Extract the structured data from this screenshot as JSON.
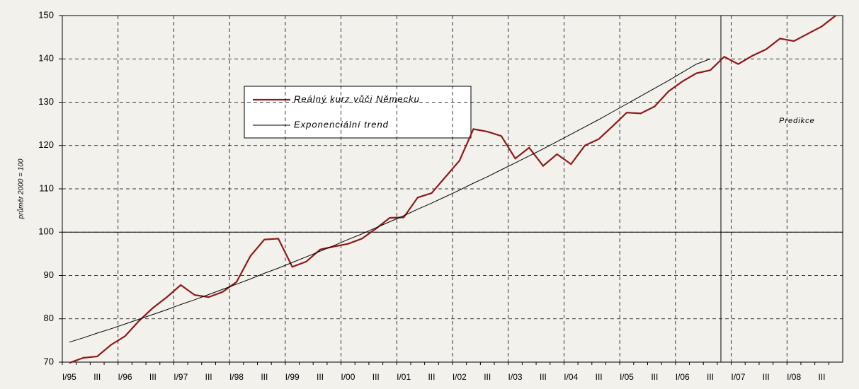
{
  "chart_data": {
    "type": "line",
    "y_axis_label": "průměr 2000 = 100",
    "annotation": "Predikce",
    "categories": [
      "I/95",
      null,
      "III",
      null,
      "I/96",
      null,
      "III",
      null,
      "I/97",
      null,
      "III",
      null,
      "I/98",
      null,
      "III",
      null,
      "I/99",
      null,
      "III",
      null,
      "I/00",
      null,
      "III",
      null,
      "I/01",
      null,
      "III",
      null,
      "I/02",
      null,
      "III",
      null,
      "I/03",
      null,
      "III",
      null,
      "I/04",
      null,
      "III",
      null,
      "I/05",
      null,
      "III",
      null,
      "I/06",
      null,
      "III",
      null,
      "I/07",
      null,
      "III",
      null,
      "I/08",
      null,
      "III",
      null
    ],
    "series": [
      {
        "name": "Reálný kurz vůči Německu",
        "color": "#8b1a1a",
        "values": [
          69.8,
          71,
          71.3,
          74,
          76,
          79.5,
          82.5,
          85,
          87.8,
          85.5,
          85,
          86.2,
          88.5,
          94.5,
          98.3,
          98.5,
          92,
          93.2,
          96,
          96.7,
          97.3,
          98.5,
          100.8,
          103.3,
          103.4,
          108,
          109,
          112.8,
          116.5,
          123.8,
          123.2,
          122.2,
          117,
          119.5,
          115.3,
          118,
          115.7,
          120,
          121.5,
          124.5,
          127.6,
          127.4,
          129,
          132.5,
          134.8,
          136.7,
          137.4,
          140.5,
          138.8,
          140.7,
          142.2,
          144.7,
          144.1,
          145.8,
          147.5,
          150
        ]
      },
      {
        "name": "Exponenciální trend",
        "color": "#000000",
        "values": [
          74.6,
          75.6,
          76.7,
          77.7,
          78.8,
          79.9,
          81.0,
          82.1,
          83.3,
          84.4,
          85.6,
          86.8,
          88.0,
          89.2,
          90.5,
          91.7,
          93.0,
          94.3,
          95.6,
          96.9,
          98.3,
          99.6,
          101.0,
          102.4,
          103.8,
          105.3,
          106.7,
          108.2,
          109.7,
          111.3,
          112.8,
          114.4,
          116.0,
          117.6,
          119.2,
          120.9,
          122.6,
          124.3,
          126.0,
          127.8,
          129.6,
          131.4,
          133.2,
          135.0,
          136.9,
          138.8,
          140.0,
          null,
          null,
          null,
          null,
          null,
          null,
          null,
          null,
          null
        ]
      }
    ],
    "ylim": [
      70,
      150
    ],
    "yticks": [
      70,
      80,
      90,
      100,
      110,
      120,
      130,
      140,
      150
    ],
    "grid": true
  }
}
